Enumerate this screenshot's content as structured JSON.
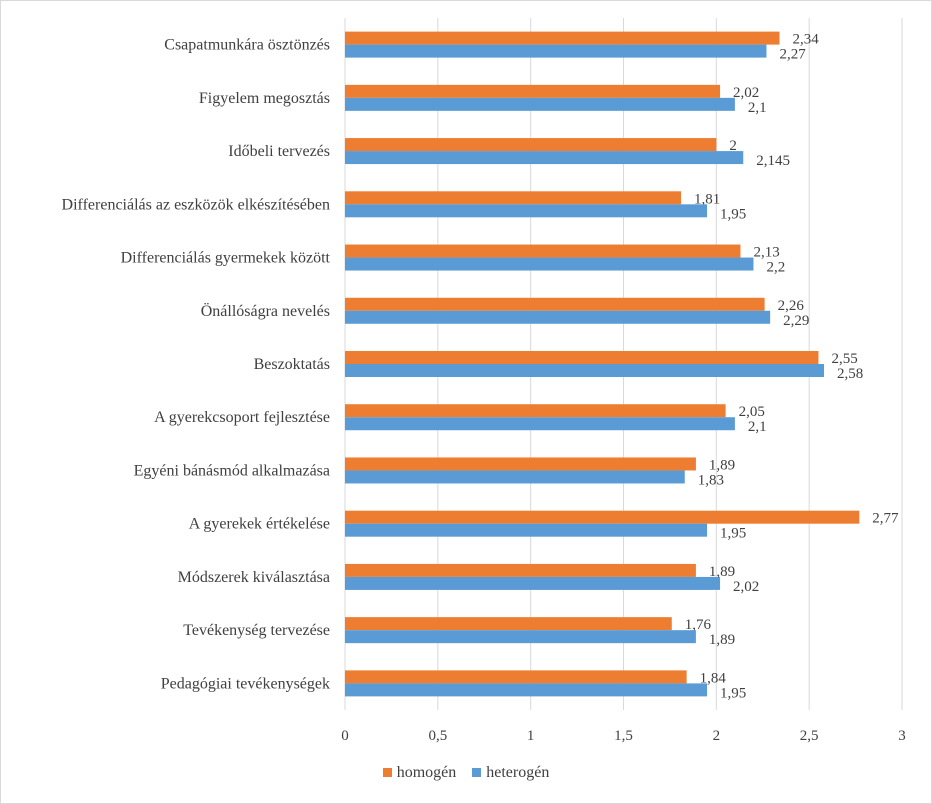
{
  "chart_data": {
    "type": "bar",
    "orientation": "horizontal",
    "title": "",
    "xlabel": "",
    "ylabel": "",
    "xlim": [
      0,
      3
    ],
    "xticks": [
      "0",
      "0,5",
      "1",
      "1,5",
      "2",
      "2,5",
      "3"
    ],
    "xtick_values": [
      0,
      0.5,
      1,
      1.5,
      2,
      2.5,
      3
    ],
    "grid": "vertical",
    "legend_position": "bottom",
    "categories": [
      "Csapatmunkára ösztönzés",
      "Figyelem megosztás",
      "Időbeli tervezés",
      "Differenciálás az eszközök elkészítésében",
      "Differenciálás gyermekek között",
      "Önállóságra nevelés",
      "Beszoktatás",
      "A gyerekcsoport fejlesztése",
      "Egyéni bánásmód alkalmazása",
      "A gyerekek értékelése",
      "Módszerek kiválasztása",
      "Tevékenység tervezése",
      "Pedagógiai tevékenységek"
    ],
    "series": [
      {
        "name": "homogén",
        "color": "#ED7D31",
        "values": [
          2.34,
          2.02,
          2,
          1.81,
          2.13,
          2.26,
          2.55,
          2.05,
          1.89,
          2.77,
          1.89,
          1.76,
          1.84
        ],
        "labels": [
          "2,34",
          "2,02",
          "2",
          "1,81",
          "2,13",
          "2,26",
          "2,55",
          "2,05",
          "1,89",
          "2,77",
          "1,89",
          "1,76",
          "1,84"
        ]
      },
      {
        "name": "heterogén",
        "color": "#5B9BD5",
        "values": [
          2.27,
          2.1,
          2.145,
          1.95,
          2.2,
          2.29,
          2.58,
          2.1,
          1.83,
          1.95,
          2.02,
          1.89,
          1.95
        ],
        "labels": [
          "2,27",
          "2,1",
          "2,145",
          "1,95",
          "2,2",
          "2,29",
          "2,58",
          "2,1",
          "1,83",
          "1,95",
          "2,02",
          "1,89",
          "1,95"
        ]
      }
    ]
  }
}
